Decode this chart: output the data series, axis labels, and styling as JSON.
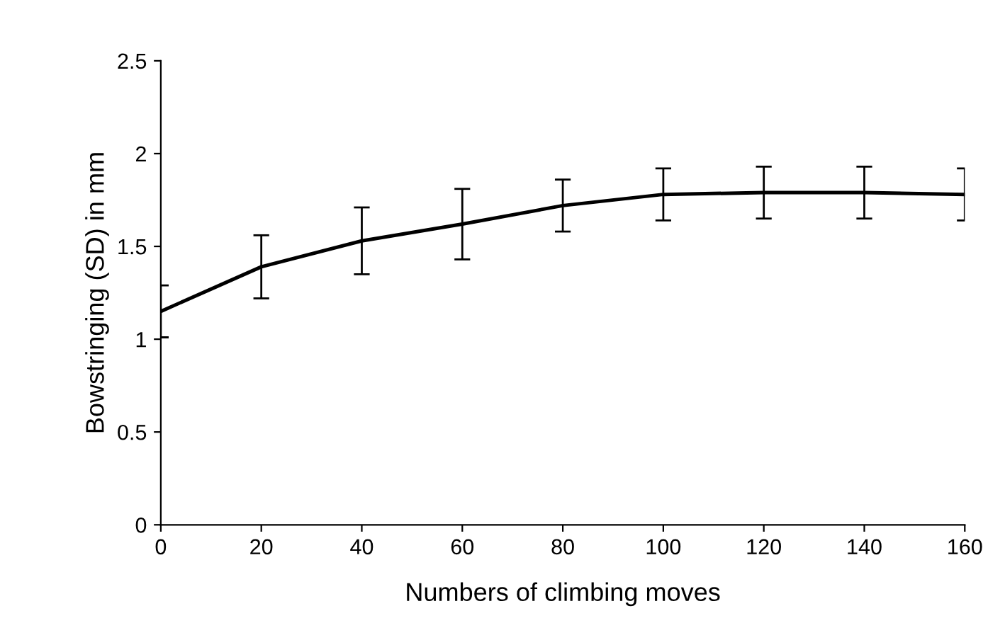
{
  "chart_data": {
    "type": "line",
    "xlabel": "Numbers of climbing moves",
    "ylabel": "Bowstringing (SD) in mm",
    "x": [
      0,
      20,
      40,
      60,
      80,
      100,
      120,
      140,
      160
    ],
    "series": [
      {
        "color": "#000000",
        "values": [
          1.15,
          1.39,
          1.53,
          1.62,
          1.72,
          1.78,
          1.79,
          1.79,
          1.78
        ],
        "errors": [
          0.14,
          0.17,
          0.18,
          0.19,
          0.14,
          0.14,
          0.14,
          0.14,
          0.14
        ]
      }
    ],
    "xlim": [
      0,
      160
    ],
    "xticks": [
      0,
      20,
      40,
      60,
      80,
      100,
      120,
      140,
      160
    ],
    "ylim": [
      0,
      2.5
    ],
    "yticks": [
      0,
      0.5,
      1,
      1.5,
      2,
      2.5
    ],
    "grid": false,
    "legend": false,
    "marker": "none",
    "line_style": "solid"
  }
}
